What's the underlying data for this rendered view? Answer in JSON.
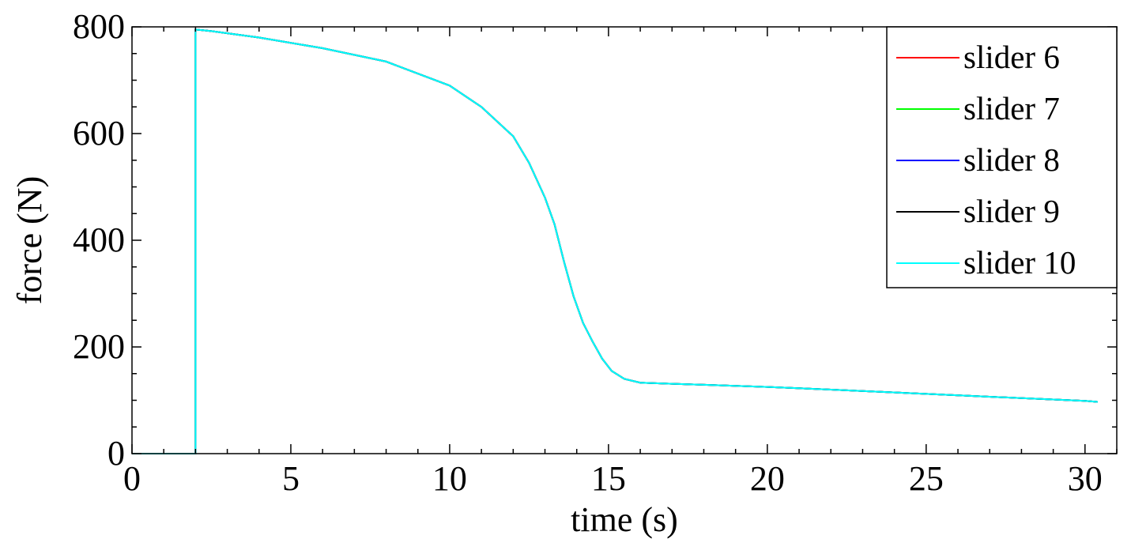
{
  "chart_data": {
    "type": "line",
    "title": "",
    "xlabel": "time (s)",
    "ylabel": "force (N)",
    "xlim": [
      0,
      31
    ],
    "ylim": [
      0,
      800
    ],
    "xticks": [
      0,
      5,
      10,
      15,
      20,
      25,
      30
    ],
    "xtick_labels": [
      "0",
      "5",
      "10",
      "15",
      "20",
      "25",
      "30"
    ],
    "yticks": [
      0,
      200,
      400,
      600,
      800
    ],
    "ytick_labels": [
      "0",
      "200",
      "400",
      "600",
      "800"
    ],
    "grid": false,
    "legend_position": "top-right",
    "series": [
      {
        "name": "slider 6",
        "color": "#ff0000",
        "x": [
          0,
          2,
          2,
          2.5,
          4,
          6,
          8,
          10,
          11,
          12,
          12.5,
          13,
          13.3,
          13.6,
          13.9,
          14.2,
          14.5,
          14.8,
          15.1,
          15.5,
          16,
          17,
          18,
          19,
          20,
          22,
          25,
          28,
          30,
          30.4
        ],
        "y": [
          0,
          0,
          795,
          792,
          780,
          760,
          735,
          690,
          650,
          595,
          545,
          480,
          430,
          360,
          295,
          245,
          210,
          178,
          155,
          140,
          133,
          131,
          129,
          127,
          125,
          120,
          112,
          104,
          99,
          97
        ]
      },
      {
        "name": "slider 7",
        "color": "#00ff00",
        "x": [
          0,
          2,
          2,
          2.5,
          4,
          6,
          8,
          10,
          11,
          12,
          12.5,
          13,
          13.3,
          13.6,
          13.9,
          14.2,
          14.5,
          14.8,
          15.1,
          15.5,
          16,
          17,
          18,
          19,
          20,
          22,
          25,
          28,
          30,
          30.4
        ],
        "y": [
          0,
          0,
          795,
          792,
          780,
          760,
          735,
          690,
          650,
          595,
          545,
          480,
          430,
          360,
          295,
          245,
          210,
          178,
          155,
          140,
          133,
          131,
          129,
          127,
          125,
          120,
          112,
          104,
          99,
          97
        ]
      },
      {
        "name": "slider 8",
        "color": "#0000ff",
        "x": [
          0,
          2,
          2,
          2.5,
          4,
          6,
          8,
          10,
          11,
          12,
          12.5,
          13,
          13.3,
          13.6,
          13.9,
          14.2,
          14.5,
          14.8,
          15.1,
          15.5,
          16,
          17,
          18,
          19,
          20,
          22,
          25,
          28,
          30,
          30.4
        ],
        "y": [
          0,
          0,
          795,
          792,
          780,
          760,
          735,
          690,
          650,
          595,
          545,
          480,
          430,
          360,
          295,
          245,
          210,
          178,
          155,
          140,
          133,
          131,
          129,
          127,
          125,
          120,
          112,
          104,
          99,
          97
        ]
      },
      {
        "name": "slider 9",
        "color": "#000000",
        "x": [
          0,
          2,
          2,
          2.5,
          4,
          6,
          8,
          10,
          11,
          12,
          12.5,
          13,
          13.3,
          13.6,
          13.9,
          14.2,
          14.5,
          14.8,
          15.1,
          15.5,
          16,
          17,
          18,
          19,
          20,
          22,
          25,
          28,
          30,
          30.4
        ],
        "y": [
          0,
          0,
          795,
          792,
          780,
          760,
          735,
          690,
          650,
          595,
          545,
          480,
          430,
          360,
          295,
          245,
          210,
          178,
          155,
          140,
          133,
          131,
          129,
          127,
          125,
          120,
          112,
          104,
          99,
          97
        ]
      },
      {
        "name": "slider 10",
        "color": "#00ffff",
        "x": [
          0,
          2,
          2,
          2.5,
          4,
          6,
          8,
          10,
          11,
          12,
          12.5,
          13,
          13.3,
          13.6,
          13.9,
          14.2,
          14.5,
          14.8,
          15.1,
          15.5,
          16,
          17,
          18,
          19,
          20,
          22,
          25,
          28,
          30,
          30.4
        ],
        "y": [
          0,
          0,
          795,
          792,
          780,
          760,
          735,
          690,
          650,
          595,
          545,
          480,
          430,
          360,
          295,
          245,
          210,
          178,
          155,
          140,
          133,
          131,
          129,
          127,
          125,
          120,
          112,
          104,
          99,
          97
        ]
      }
    ]
  }
}
